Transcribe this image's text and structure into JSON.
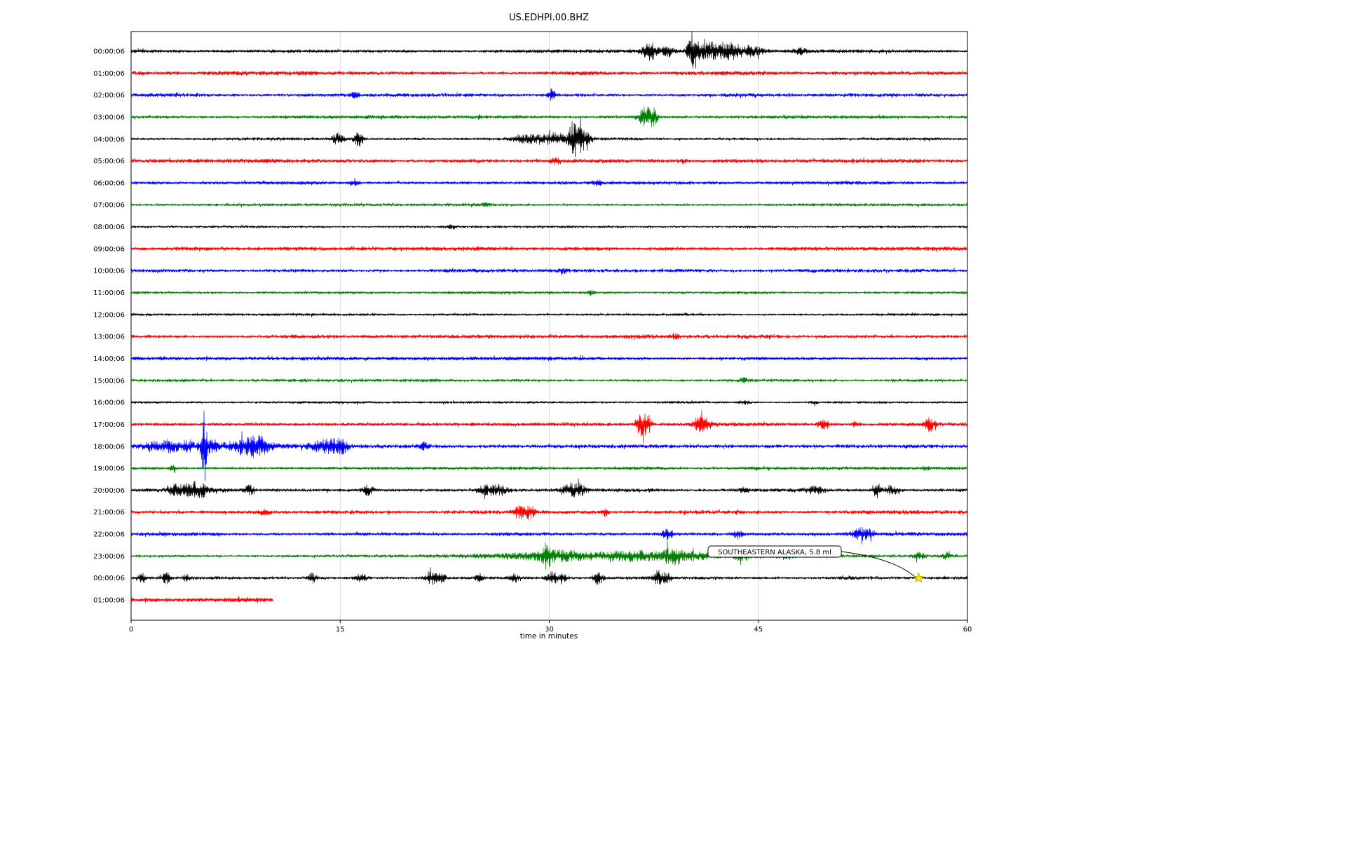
{
  "title": "US.EDHPI.00.BHZ",
  "chart_data": {
    "type": "line",
    "subtype": "seismogram-helicorder",
    "station": "US.EDHPI.00.BHZ",
    "xlabel": "time in minutes",
    "xlim": [
      0,
      60
    ],
    "xticks": [
      "0",
      "15",
      "30",
      "45",
      "60"
    ],
    "xtick_values": [
      0,
      15,
      30,
      45,
      60
    ],
    "grid": "vertical-at-xticks",
    "trace_colors_cycle": [
      "#000000",
      "#ff0000",
      "#0000ff",
      "#008000"
    ],
    "annotation": {
      "text": "SOUTHEASTERN ALASKA, 5.8 ml",
      "row_index": 24,
      "row_label": "00:00:06",
      "minute": 56.5,
      "marker": "yellow-star",
      "marker_color": "#ffee00"
    },
    "rows": [
      {
        "label": "00:00:06",
        "color": "#000000",
        "base_amp": 2.0,
        "extent": [
          0,
          60
        ],
        "events": [
          {
            "t": 37.2,
            "sigma": 0.4,
            "amp": 12
          },
          {
            "t": 38.5,
            "sigma": 0.3,
            "amp": 8
          },
          {
            "t": 40.3,
            "sigma": 0.25,
            "amp": 25
          },
          {
            "t": 41.5,
            "sigma": 0.8,
            "amp": 11
          },
          {
            "t": 43.0,
            "sigma": 0.6,
            "amp": 9
          },
          {
            "t": 44.5,
            "sigma": 0.5,
            "amp": 7
          },
          {
            "t": 48.0,
            "sigma": 0.3,
            "amp": 4
          }
        ]
      },
      {
        "label": "01:00:06",
        "color": "#ff0000",
        "base_amp": 2.6,
        "extent": [
          0,
          60
        ],
        "events": []
      },
      {
        "label": "02:00:06",
        "color": "#0000ff",
        "base_amp": 2.2,
        "extent": [
          0,
          60
        ],
        "events": [
          {
            "t": 16.0,
            "sigma": 0.2,
            "amp": 3
          },
          {
            "t": 30.2,
            "sigma": 0.15,
            "amp": 9
          }
        ]
      },
      {
        "label": "03:00:06",
        "color": "#008000",
        "base_amp": 2.0,
        "extent": [
          0,
          60
        ],
        "events": [
          {
            "t": 25.0,
            "sigma": 0.1,
            "amp": 3
          },
          {
            "t": 36.9,
            "sigma": 0.35,
            "amp": 14
          },
          {
            "t": 37.5,
            "sigma": 0.2,
            "amp": 10
          }
        ]
      },
      {
        "label": "04:00:06",
        "color": "#000000",
        "base_amp": 1.8,
        "extent": [
          0,
          60
        ],
        "events": [
          {
            "t": 14.8,
            "sigma": 0.3,
            "amp": 8
          },
          {
            "t": 16.3,
            "sigma": 0.25,
            "amp": 10
          },
          {
            "t": 28.5,
            "sigma": 0.8,
            "amp": 5
          },
          {
            "t": 30.5,
            "sigma": 0.6,
            "amp": 8
          },
          {
            "t": 31.8,
            "sigma": 0.3,
            "amp": 22
          },
          {
            "t": 32.4,
            "sigma": 0.4,
            "amp": 12
          }
        ]
      },
      {
        "label": "05:00:06",
        "color": "#ff0000",
        "base_amp": 2.5,
        "extent": [
          0,
          60
        ],
        "events": [
          {
            "t": 30.5,
            "sigma": 0.3,
            "amp": 3
          },
          {
            "t": 39.5,
            "sigma": 0.2,
            "amp": 3
          }
        ]
      },
      {
        "label": "06:00:06",
        "color": "#0000ff",
        "base_amp": 2.3,
        "extent": [
          0,
          60
        ],
        "events": [
          {
            "t": 16.0,
            "sigma": 0.2,
            "amp": 3
          },
          {
            "t": 33.5,
            "sigma": 0.2,
            "amp": 3
          }
        ]
      },
      {
        "label": "07:00:06",
        "color": "#008000",
        "base_amp": 1.9,
        "extent": [
          0,
          60
        ],
        "events": [
          {
            "t": 25.5,
            "sigma": 0.15,
            "amp": 4
          }
        ]
      },
      {
        "label": "08:00:06",
        "color": "#000000",
        "base_amp": 1.4,
        "extent": [
          0,
          60
        ],
        "events": [
          {
            "t": 23.0,
            "sigma": 0.2,
            "amp": 2.5
          }
        ]
      },
      {
        "label": "09:00:06",
        "color": "#ff0000",
        "base_amp": 2.4,
        "extent": [
          0,
          60
        ],
        "events": []
      },
      {
        "label": "10:00:06",
        "color": "#0000ff",
        "base_amp": 2.2,
        "extent": [
          0,
          60
        ],
        "events": [
          {
            "t": 31.0,
            "sigma": 0.2,
            "amp": 3
          }
        ]
      },
      {
        "label": "11:00:06",
        "color": "#008000",
        "base_amp": 1.8,
        "extent": [
          0,
          60
        ],
        "events": [
          {
            "t": 33.0,
            "sigma": 0.2,
            "amp": 3
          }
        ]
      },
      {
        "label": "12:00:06",
        "color": "#000000",
        "base_amp": 1.5,
        "extent": [
          0,
          60
        ],
        "events": []
      },
      {
        "label": "13:00:06",
        "color": "#ff0000",
        "base_amp": 2.4,
        "extent": [
          0,
          60
        ],
        "events": [
          {
            "t": 39.0,
            "sigma": 0.2,
            "amp": 3
          }
        ]
      },
      {
        "label": "14:00:06",
        "color": "#0000ff",
        "base_amp": 2.2,
        "extent": [
          0,
          60
        ],
        "events": []
      },
      {
        "label": "15:00:06",
        "color": "#008000",
        "base_amp": 1.9,
        "extent": [
          0,
          60
        ],
        "events": [
          {
            "t": 44.0,
            "sigma": 0.2,
            "amp": 3
          }
        ]
      },
      {
        "label": "16:00:06",
        "color": "#000000",
        "base_amp": 1.5,
        "extent": [
          0,
          60
        ],
        "events": [
          {
            "t": 44.0,
            "sigma": 0.3,
            "amp": 2.5
          },
          {
            "t": 49.0,
            "sigma": 0.2,
            "amp": 2
          }
        ]
      },
      {
        "label": "17:00:06",
        "color": "#ff0000",
        "base_amp": 2.4,
        "extent": [
          0,
          60
        ],
        "events": [
          {
            "t": 36.6,
            "sigma": 0.25,
            "amp": 18
          },
          {
            "t": 37.1,
            "sigma": 0.15,
            "amp": 12
          },
          {
            "t": 40.8,
            "sigma": 0.3,
            "amp": 10
          },
          {
            "t": 41.3,
            "sigma": 0.2,
            "amp": 7
          },
          {
            "t": 49.7,
            "sigma": 0.3,
            "amp": 6
          },
          {
            "t": 52.0,
            "sigma": 0.2,
            "amp": 4
          },
          {
            "t": 57.3,
            "sigma": 0.25,
            "amp": 9
          }
        ]
      },
      {
        "label": "18:00:06",
        "color": "#0000ff",
        "base_amp": 2.3,
        "extent": [
          0,
          60
        ],
        "events": [
          {
            "t": 8.0,
            "sigma": 5.0,
            "amp": 2.5
          },
          {
            "t": 1.5,
            "sigma": 0.5,
            "amp": 5
          },
          {
            "t": 2.8,
            "sigma": 0.4,
            "amp": 7
          },
          {
            "t": 4.0,
            "sigma": 0.3,
            "amp": 6
          },
          {
            "t": 5.2,
            "sigma": 0.12,
            "amp": 55
          },
          {
            "t": 5.6,
            "sigma": 0.5,
            "amp": 8
          },
          {
            "t": 8.0,
            "sigma": 0.5,
            "amp": 8
          },
          {
            "t": 8.8,
            "sigma": 0.4,
            "amp": 9
          },
          {
            "t": 9.5,
            "sigma": 0.4,
            "amp": 7
          },
          {
            "t": 13.5,
            "sigma": 0.5,
            "amp": 7
          },
          {
            "t": 14.5,
            "sigma": 0.4,
            "amp": 9
          },
          {
            "t": 15.2,
            "sigma": 0.3,
            "amp": 7
          },
          {
            "t": 21.0,
            "sigma": 0.2,
            "amp": 4
          }
        ]
      },
      {
        "label": "19:00:06",
        "color": "#008000",
        "base_amp": 1.9,
        "extent": [
          0,
          60
        ],
        "events": [
          {
            "t": 3.0,
            "sigma": 0.15,
            "amp": 7
          },
          {
            "t": 57.0,
            "sigma": 0.15,
            "amp": 3
          }
        ]
      },
      {
        "label": "20:00:06",
        "color": "#000000",
        "base_amp": 2.2,
        "extent": [
          0,
          60
        ],
        "events": [
          {
            "t": 4.0,
            "sigma": 2.0,
            "amp": 2
          },
          {
            "t": 3.2,
            "sigma": 0.3,
            "amp": 8
          },
          {
            "t": 4.3,
            "sigma": 0.4,
            "amp": 9
          },
          {
            "t": 5.0,
            "sigma": 0.3,
            "amp": 7
          },
          {
            "t": 8.5,
            "sigma": 0.3,
            "amp": 6
          },
          {
            "t": 17.0,
            "sigma": 0.25,
            "amp": 7
          },
          {
            "t": 25.5,
            "sigma": 0.5,
            "amp": 6
          },
          {
            "t": 26.5,
            "sigma": 0.4,
            "amp": 6
          },
          {
            "t": 31.5,
            "sigma": 0.4,
            "amp": 8
          },
          {
            "t": 32.2,
            "sigma": 0.3,
            "amp": 7
          },
          {
            "t": 44.0,
            "sigma": 0.2,
            "amp": 4
          },
          {
            "t": 49.0,
            "sigma": 0.5,
            "amp": 4
          },
          {
            "t": 53.5,
            "sigma": 0.2,
            "amp": 10
          },
          {
            "t": 54.5,
            "sigma": 0.4,
            "amp": 6
          }
        ]
      },
      {
        "label": "21:00:06",
        "color": "#ff0000",
        "base_amp": 2.4,
        "extent": [
          0,
          60
        ],
        "events": [
          {
            "t": 9.5,
            "sigma": 0.3,
            "amp": 4
          },
          {
            "t": 28.0,
            "sigma": 0.4,
            "amp": 8
          },
          {
            "t": 28.6,
            "sigma": 0.3,
            "amp": 6
          },
          {
            "t": 34.0,
            "sigma": 0.15,
            "amp": 5
          }
        ]
      },
      {
        "label": "22:00:06",
        "color": "#0000ff",
        "base_amp": 2.3,
        "extent": [
          0,
          60
        ],
        "events": [
          {
            "t": 38.5,
            "sigma": 0.3,
            "amp": 7
          },
          {
            "t": 43.5,
            "sigma": 0.25,
            "amp": 6
          },
          {
            "t": 52.3,
            "sigma": 0.4,
            "amp": 7
          },
          {
            "t": 53.0,
            "sigma": 0.3,
            "amp": 5
          }
        ]
      },
      {
        "label": "23:00:06",
        "color": "#008000",
        "base_amp": 2.0,
        "extent": [
          0,
          60
        ],
        "events": [
          {
            "t": 33.0,
            "sigma": 6.0,
            "amp": 3
          },
          {
            "t": 29.8,
            "sigma": 0.2,
            "amp": 12
          },
          {
            "t": 30.5,
            "sigma": 1.5,
            "amp": 5
          },
          {
            "t": 36.0,
            "sigma": 1.5,
            "amp": 5
          },
          {
            "t": 38.8,
            "sigma": 0.4,
            "amp": 9
          },
          {
            "t": 40.0,
            "sigma": 1.0,
            "amp": 4
          },
          {
            "t": 43.8,
            "sigma": 0.3,
            "amp": 7
          },
          {
            "t": 47.0,
            "sigma": 0.3,
            "amp": 4
          },
          {
            "t": 56.5,
            "sigma": 0.3,
            "amp": 5
          },
          {
            "t": 58.5,
            "sigma": 0.2,
            "amp": 5
          }
        ]
      },
      {
        "label": "00:00:06",
        "color": "#000000",
        "base_amp": 2.0,
        "extent": [
          0,
          60
        ],
        "events": [
          {
            "t": 0.8,
            "sigma": 0.2,
            "amp": 7
          },
          {
            "t": 2.5,
            "sigma": 0.2,
            "amp": 8
          },
          {
            "t": 4.0,
            "sigma": 0.2,
            "amp": 4
          },
          {
            "t": 13.0,
            "sigma": 0.2,
            "amp": 7
          },
          {
            "t": 16.5,
            "sigma": 0.3,
            "amp": 5
          },
          {
            "t": 21.5,
            "sigma": 0.3,
            "amp": 9
          },
          {
            "t": 22.3,
            "sigma": 0.2,
            "amp": 7
          },
          {
            "t": 25.0,
            "sigma": 0.2,
            "amp": 6
          },
          {
            "t": 27.5,
            "sigma": 0.2,
            "amp": 5
          },
          {
            "t": 30.2,
            "sigma": 0.3,
            "amp": 8
          },
          {
            "t": 31.0,
            "sigma": 0.2,
            "amp": 6
          },
          {
            "t": 33.5,
            "sigma": 0.25,
            "amp": 9
          },
          {
            "t": 37.8,
            "sigma": 0.3,
            "amp": 10
          },
          {
            "t": 38.5,
            "sigma": 0.2,
            "amp": 6
          }
        ]
      },
      {
        "label": "01:00:06",
        "color": "#ff0000",
        "base_amp": 2.6,
        "extent": [
          0,
          10.2
        ],
        "events": []
      }
    ]
  }
}
